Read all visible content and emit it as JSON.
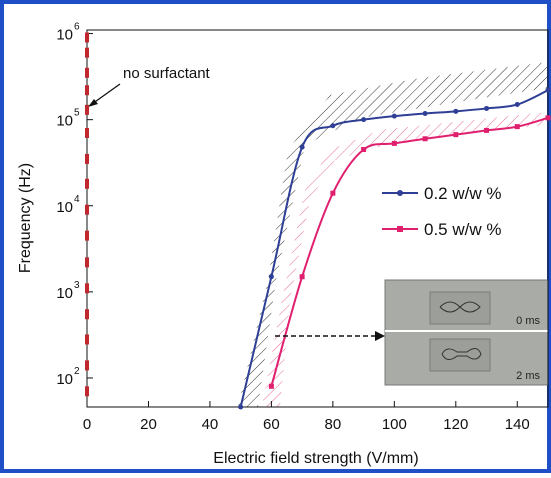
{
  "chart_data": {
    "type": "line",
    "x_label": "Electric field strength  (V/mm)",
    "y_label": "Frequency (Hz)",
    "log_y": true,
    "xlim": [
      0,
      150
    ],
    "ylim": [
      46,
      1100000
    ],
    "xticks": [
      0,
      20,
      40,
      60,
      80,
      100,
      120,
      140
    ],
    "yticks": [
      {
        "value": 100,
        "label": "10",
        "exponent": "2"
      },
      {
        "value": 1000,
        "label": "10",
        "exponent": "3"
      },
      {
        "value": 10000,
        "label": "10",
        "exponent": "4"
      },
      {
        "value": 100000,
        "label": "10",
        "exponent": "5"
      },
      {
        "value": 1000000,
        "label": "10",
        "exponent": "6"
      }
    ],
    "series": [
      {
        "name": "0.2 w/w %",
        "color": "#2e3f95",
        "x": [
          50,
          60,
          70,
          80,
          90,
          100,
          110,
          120,
          130,
          140,
          150
        ],
        "values": [
          46,
          1500,
          48000,
          85000,
          100000,
          110000,
          118000,
          125000,
          135000,
          150000,
          220000
        ]
      },
      {
        "name": "0.5 w/w %",
        "color": "#e0206f",
        "x": [
          60,
          70,
          80,
          90,
          100,
          110,
          120,
          130,
          140,
          150
        ],
        "values": [
          80,
          1500,
          14000,
          45000,
          53000,
          60000,
          67000,
          75000,
          83000,
          105000
        ]
      }
    ],
    "no_surfactant_points": {
      "color": "#c0282d",
      "x": 0,
      "values": [
        900000,
        600000,
        350000,
        220000,
        130000,
        70000,
        35000,
        18000,
        9000,
        4500,
        2200,
        1100,
        550,
        280,
        140,
        70
      ]
    },
    "annotations": {
      "no_surfactant": "no surfactant",
      "inset_top": "0 ms",
      "inset_bottom": "2 ms"
    }
  }
}
